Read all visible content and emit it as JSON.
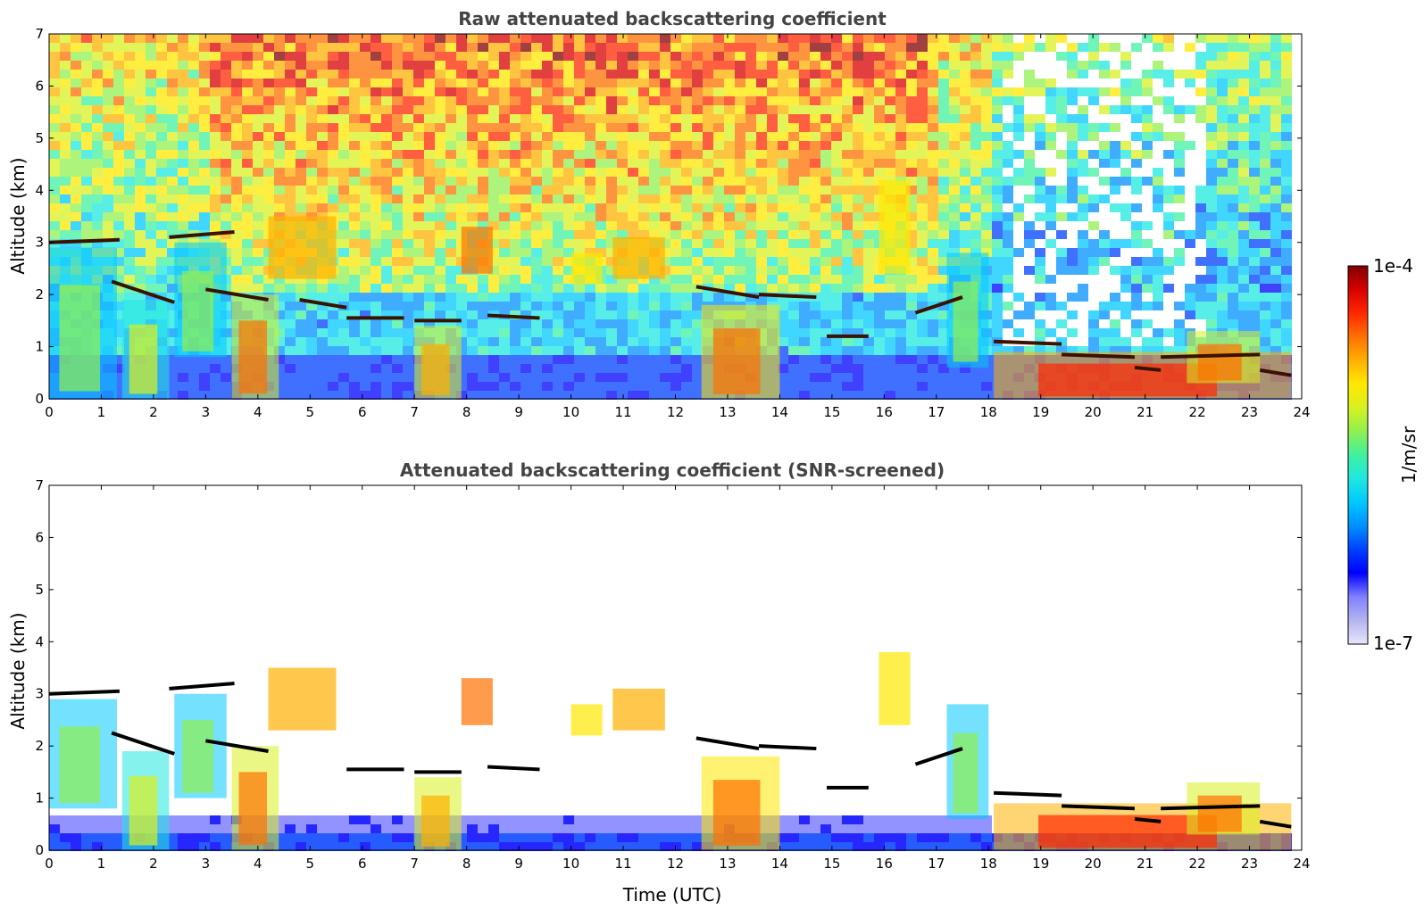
{
  "colors": {
    "colormap": [
      "#e6e6fa",
      "#b4b4f0",
      "#8080ff",
      "#0000ff",
      "#0040ff",
      "#0090ff",
      "#00c8ff",
      "#20e8e0",
      "#40f0a0",
      "#90f050",
      "#d8f020",
      "#ffe800",
      "#ffb000",
      "#ff7000",
      "#ff2800",
      "#d80000",
      "#800000"
    ],
    "cloud_top": "#3a1200",
    "cloud_top_screened": "#000000"
  },
  "colorbar": {
    "label": "1/m/sr",
    "max_label": "1e-4",
    "min_label": "1e-7",
    "scale": "log"
  },
  "chart_data": [
    {
      "type": "heatmap",
      "title": "Raw attenuated backscattering coefficient",
      "xlabel": "",
      "ylabel": "Altitude (km)",
      "xlim": [
        0,
        24
      ],
      "ylim": [
        0,
        7
      ],
      "x_ticks": [
        "0",
        "1",
        "2",
        "3",
        "4",
        "5",
        "6",
        "7",
        "8",
        "9",
        "10",
        "11",
        "12",
        "13",
        "14",
        "15",
        "16",
        "17",
        "18",
        "19",
        "20",
        "21",
        "22",
        "23",
        "24"
      ],
      "y_ticks": [
        "0",
        "1",
        "2",
        "3",
        "4",
        "5",
        "6",
        "7"
      ],
      "data_end_hour": 23.8,
      "background": "noisy signal, blue below 1 km, green/yellow aloft, red/orange above 5 km between 4 and 17 h",
      "cloud_top_layers": [
        {
          "x": [
            0,
            1.35
          ],
          "alt": [
            3.0,
            3.05
          ]
        },
        {
          "x": [
            1.2,
            2.4
          ],
          "alt": [
            2.25,
            1.85
          ]
        },
        {
          "x": [
            2.3,
            3.55
          ],
          "alt": [
            3.1,
            3.2
          ]
        },
        {
          "x": [
            3.0,
            4.2
          ],
          "alt": [
            2.1,
            1.9
          ]
        },
        {
          "x": [
            4.8,
            5.7
          ],
          "alt": [
            1.9,
            1.75
          ]
        },
        {
          "x": [
            5.7,
            6.8
          ],
          "alt": [
            1.55,
            1.55
          ]
        },
        {
          "x": [
            7.0,
            7.9
          ],
          "alt": [
            1.5,
            1.5
          ]
        },
        {
          "x": [
            8.4,
            9.4
          ],
          "alt": [
            1.6,
            1.55
          ]
        },
        {
          "x": [
            12.4,
            13.6
          ],
          "alt": [
            2.15,
            1.95
          ]
        },
        {
          "x": [
            13.6,
            14.7
          ],
          "alt": [
            2.0,
            1.95
          ]
        },
        {
          "x": [
            14.9,
            15.7
          ],
          "alt": [
            1.2,
            1.2
          ]
        },
        {
          "x": [
            16.6,
            17.5
          ],
          "alt": [
            1.65,
            1.95
          ]
        },
        {
          "x": [
            18.1,
            19.4
          ],
          "alt": [
            1.1,
            1.05
          ]
        },
        {
          "x": [
            19.4,
            20.8
          ],
          "alt": [
            0.85,
            0.8
          ]
        },
        {
          "x": [
            20.8,
            21.3
          ],
          "alt": [
            0.6,
            0.55
          ]
        },
        {
          "x": [
            21.3,
            23.2
          ],
          "alt": [
            0.8,
            0.85
          ]
        },
        {
          "x": [
            23.2,
            23.8
          ],
          "alt": [
            0.55,
            0.45
          ]
        }
      ],
      "aerosol_regions": [
        {
          "x": [
            0,
            1.3
          ],
          "alt": [
            0,
            2.9
          ],
          "level": 0.55
        },
        {
          "x": [
            1.4,
            2.3
          ],
          "alt": [
            0,
            1.9
          ],
          "level": 0.6
        },
        {
          "x": [
            2.4,
            3.4
          ],
          "alt": [
            0.8,
            3.0
          ],
          "level": 0.55
        },
        {
          "x": [
            3.5,
            4.4
          ],
          "alt": [
            0,
            2.0
          ],
          "level": 0.8
        },
        {
          "x": [
            7.0,
            7.9
          ],
          "alt": [
            0,
            1.4
          ],
          "level": 0.78
        },
        {
          "x": [
            12.5,
            14.0
          ],
          "alt": [
            0,
            1.8
          ],
          "level": 0.82
        },
        {
          "x": [
            17.2,
            18.0
          ],
          "alt": [
            0.6,
            2.8
          ],
          "level": 0.55
        },
        {
          "x": [
            18.1,
            23.8
          ],
          "alt": [
            0,
            0.9
          ],
          "level": 0.88
        },
        {
          "x": [
            21.8,
            23.2
          ],
          "alt": [
            0.3,
            1.3
          ],
          "level": 0.8
        }
      ],
      "elevated_layers": [
        {
          "x": [
            4.2,
            5.5
          ],
          "alt": [
            2.3,
            3.5
          ],
          "level": 0.75
        },
        {
          "x": [
            7.9,
            8.5
          ],
          "alt": [
            2.4,
            3.3
          ],
          "level": 0.8
        },
        {
          "x": [
            10.0,
            10.6
          ],
          "alt": [
            2.2,
            2.8
          ],
          "level": 0.68
        },
        {
          "x": [
            10.8,
            11.8
          ],
          "alt": [
            2.3,
            3.1
          ],
          "level": 0.78
        },
        {
          "x": [
            15.9,
            16.5
          ],
          "alt": [
            2.4,
            4.2
          ],
          "level": 0.7
        }
      ]
    },
    {
      "type": "heatmap",
      "title": "Attenuated backscattering coefficient (SNR-screened)",
      "xlabel": "Time (UTC)",
      "ylabel": "Altitude (km)",
      "xlim": [
        0,
        24
      ],
      "ylim": [
        0,
        7
      ],
      "x_ticks": [
        "0",
        "1",
        "2",
        "3",
        "4",
        "5",
        "6",
        "7",
        "8",
        "9",
        "10",
        "11",
        "12",
        "13",
        "14",
        "15",
        "16",
        "17",
        "18",
        "19",
        "20",
        "21",
        "22",
        "23",
        "24"
      ],
      "y_ticks": [
        "0",
        "1",
        "2",
        "3",
        "4",
        "5",
        "6",
        "7"
      ],
      "data_end_hour": 23.8,
      "background": "white (screened) above the boundary layer; blue near-surface layer up to ~0.5 km",
      "cloud_top_layers": [
        {
          "x": [
            0,
            1.35
          ],
          "alt": [
            3.0,
            3.05
          ]
        },
        {
          "x": [
            1.2,
            2.4
          ],
          "alt": [
            2.25,
            1.85
          ]
        },
        {
          "x": [
            2.3,
            3.55
          ],
          "alt": [
            3.1,
            3.2
          ]
        },
        {
          "x": [
            3.0,
            4.2
          ],
          "alt": [
            2.1,
            1.9
          ]
        },
        {
          "x": [
            5.7,
            6.8
          ],
          "alt": [
            1.55,
            1.55
          ]
        },
        {
          "x": [
            7.0,
            7.9
          ],
          "alt": [
            1.5,
            1.5
          ]
        },
        {
          "x": [
            8.4,
            9.4
          ],
          "alt": [
            1.6,
            1.55
          ]
        },
        {
          "x": [
            12.4,
            13.6
          ],
          "alt": [
            2.15,
            1.95
          ]
        },
        {
          "x": [
            13.6,
            14.7
          ],
          "alt": [
            2.0,
            1.95
          ]
        },
        {
          "x": [
            14.9,
            15.7
          ],
          "alt": [
            1.2,
            1.2
          ]
        },
        {
          "x": [
            16.6,
            17.5
          ],
          "alt": [
            1.65,
            1.95
          ]
        },
        {
          "x": [
            18.1,
            19.4
          ],
          "alt": [
            1.1,
            1.05
          ]
        },
        {
          "x": [
            19.4,
            20.8
          ],
          "alt": [
            0.85,
            0.8
          ]
        },
        {
          "x": [
            20.8,
            21.3
          ],
          "alt": [
            0.6,
            0.55
          ]
        },
        {
          "x": [
            21.3,
            23.2
          ],
          "alt": [
            0.8,
            0.85
          ]
        },
        {
          "x": [
            23.2,
            23.8
          ],
          "alt": [
            0.55,
            0.45
          ]
        }
      ],
      "aerosol_regions": [
        {
          "x": [
            0,
            1.3
          ],
          "alt": [
            0.8,
            2.9
          ],
          "level": 0.55
        },
        {
          "x": [
            1.4,
            2.3
          ],
          "alt": [
            0,
            1.9
          ],
          "level": 0.6
        },
        {
          "x": [
            2.4,
            3.4
          ],
          "alt": [
            1.0,
            3.0
          ],
          "level": 0.55
        },
        {
          "x": [
            3.5,
            4.4
          ],
          "alt": [
            0,
            2.0
          ],
          "level": 0.8
        },
        {
          "x": [
            7.0,
            7.9
          ],
          "alt": [
            0,
            1.4
          ],
          "level": 0.78
        },
        {
          "x": [
            12.5,
            14.0
          ],
          "alt": [
            0,
            1.8
          ],
          "level": 0.82
        },
        {
          "x": [
            17.2,
            18.0
          ],
          "alt": [
            0.6,
            2.8
          ],
          "level": 0.55
        },
        {
          "x": [
            18.1,
            23.8
          ],
          "alt": [
            0,
            0.9
          ],
          "level": 0.88
        },
        {
          "x": [
            21.8,
            23.2
          ],
          "alt": [
            0.3,
            1.3
          ],
          "level": 0.8
        }
      ],
      "elevated_layers": [
        {
          "x": [
            4.2,
            5.5
          ],
          "alt": [
            2.3,
            3.5
          ],
          "level": 0.75
        },
        {
          "x": [
            7.9,
            8.5
          ],
          "alt": [
            2.4,
            3.3
          ],
          "level": 0.8
        },
        {
          "x": [
            10.0,
            10.6
          ],
          "alt": [
            2.2,
            2.8
          ],
          "level": 0.68
        },
        {
          "x": [
            10.8,
            11.8
          ],
          "alt": [
            2.3,
            3.1
          ],
          "level": 0.78
        },
        {
          "x": [
            15.9,
            16.5
          ],
          "alt": [
            2.4,
            3.8
          ],
          "level": 0.7
        }
      ]
    }
  ]
}
